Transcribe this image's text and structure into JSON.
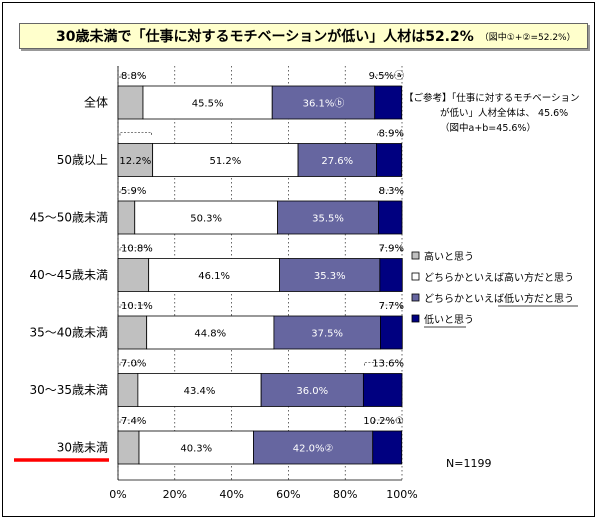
{
  "title": {
    "main": "30歳未満で「仕事に対するモチベーションが低い」人材は52.2%",
    "note": "（図中①+②=52.2%）"
  },
  "reference": {
    "line1": "【ご参考】「仕事に対するモチベーション",
    "line2": "が低い」人材全体は、 45.6%",
    "line3": "（図中a+b=45.6%）"
  },
  "legend": [
    {
      "label": "高いと思う",
      "color": "#c0c0c0"
    },
    {
      "label": "どちらかといえば高い方だと思う",
      "color": "#ffffff"
    },
    {
      "label": "どちらかといえば低い方だと思う",
      "color": "#6666a0"
    },
    {
      "label": "低いと思う",
      "color": "#000080"
    }
  ],
  "n_label": "N=1199",
  "highlight_color": "#ff0000",
  "chart_data": {
    "type": "bar",
    "orientation": "horizontal",
    "stacked": true,
    "percent": true,
    "categories": [
      "全体",
      "50歳以上",
      "45～50歳未満",
      "40～45歳未満",
      "35～40歳未満",
      "30～35歳未満",
      "30歳未満"
    ],
    "series": [
      {
        "name": "高いと思う",
        "color": "#c0c0c0",
        "values": [
          8.8,
          12.2,
          5.9,
          10.8,
          10.1,
          7.0,
          7.4
        ],
        "labels": [
          "8.8%",
          "12.2%",
          "5.9%",
          "10.8%",
          "10.1%",
          "7.0%",
          "7.4%"
        ]
      },
      {
        "name": "どちらかといえば高い方だと思う",
        "color": "#ffffff",
        "values": [
          45.5,
          51.2,
          50.3,
          46.1,
          44.8,
          43.4,
          40.3
        ],
        "labels": [
          "45.5%",
          "51.2%",
          "50.3%",
          "46.1%",
          "44.8%",
          "43.4%",
          "40.3%"
        ]
      },
      {
        "name": "どちらかといえば低い方だと思う",
        "color": "#6666a0",
        "values": [
          36.1,
          27.6,
          35.5,
          35.3,
          37.5,
          36.0,
          42.0
        ],
        "labels": [
          "36.1%ⓑ",
          "27.6%",
          "35.5%",
          "35.3%",
          "37.5%",
          "36.0%",
          "42.0%②"
        ]
      },
      {
        "name": "低いと思う",
        "color": "#000080",
        "values": [
          9.5,
          8.9,
          8.3,
          7.9,
          7.7,
          13.6,
          10.2
        ],
        "labels": [
          "9.5%ⓐ",
          "8.9%",
          "8.3%",
          "7.9%",
          "7.7%",
          "13.6%",
          "10.2%①"
        ]
      }
    ],
    "xlim": [
      0,
      100
    ],
    "xticks": [
      "0%",
      "20%",
      "40%",
      "60%",
      "80%",
      "100%"
    ],
    "highlighted_category": "30歳未満"
  }
}
